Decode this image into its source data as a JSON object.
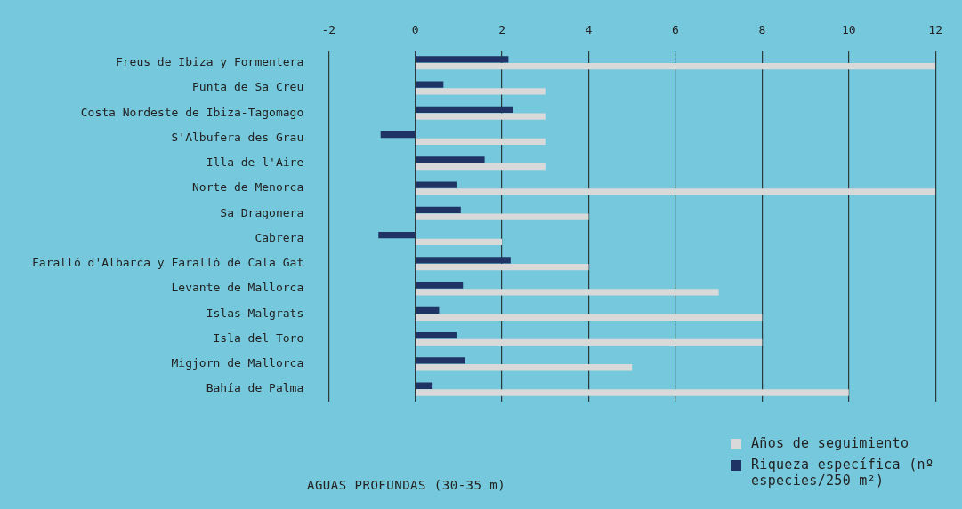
{
  "chart_data": {
    "type": "bar",
    "orientation": "horizontal",
    "categories": [
      "Freus de Ibiza y Formentera",
      "Punta de Sa Creu",
      "Costa Nordeste de Ibiza-Tagomago",
      "S'Albufera des Grau",
      "Illa de l'Aire",
      "Norte de Menorca",
      "Sa Dragonera",
      "Cabrera",
      "Faralló d'Albarca y Faralló de Cala Gat",
      "Levante de Mallorca",
      "Islas Malgrats",
      "Isla del Toro",
      "Migjorn de Mallorca",
      "Bahía de Palma"
    ],
    "series": [
      {
        "name": "Riqueza específica (nº especies/250 m²)",
        "color": "#1f3464",
        "values": [
          2.15,
          0.65,
          2.25,
          -0.8,
          1.6,
          0.95,
          1.05,
          -0.85,
          2.2,
          1.1,
          0.55,
          0.95,
          1.15,
          0.4
        ]
      },
      {
        "name": "Años de seguimiento",
        "color": "#d9d9d9",
        "values": [
          12,
          3,
          3,
          3,
          3,
          12,
          4,
          2,
          4,
          7,
          8,
          8,
          5,
          10
        ]
      }
    ],
    "xlim": [
      -2,
      12
    ],
    "xticks": [
      -2,
      0,
      2,
      4,
      6,
      8,
      10,
      12
    ],
    "grid": "x",
    "legend": "bottom right",
    "annotations": [
      "AGUAS PROFUNDAS (30-35 m)"
    ]
  }
}
